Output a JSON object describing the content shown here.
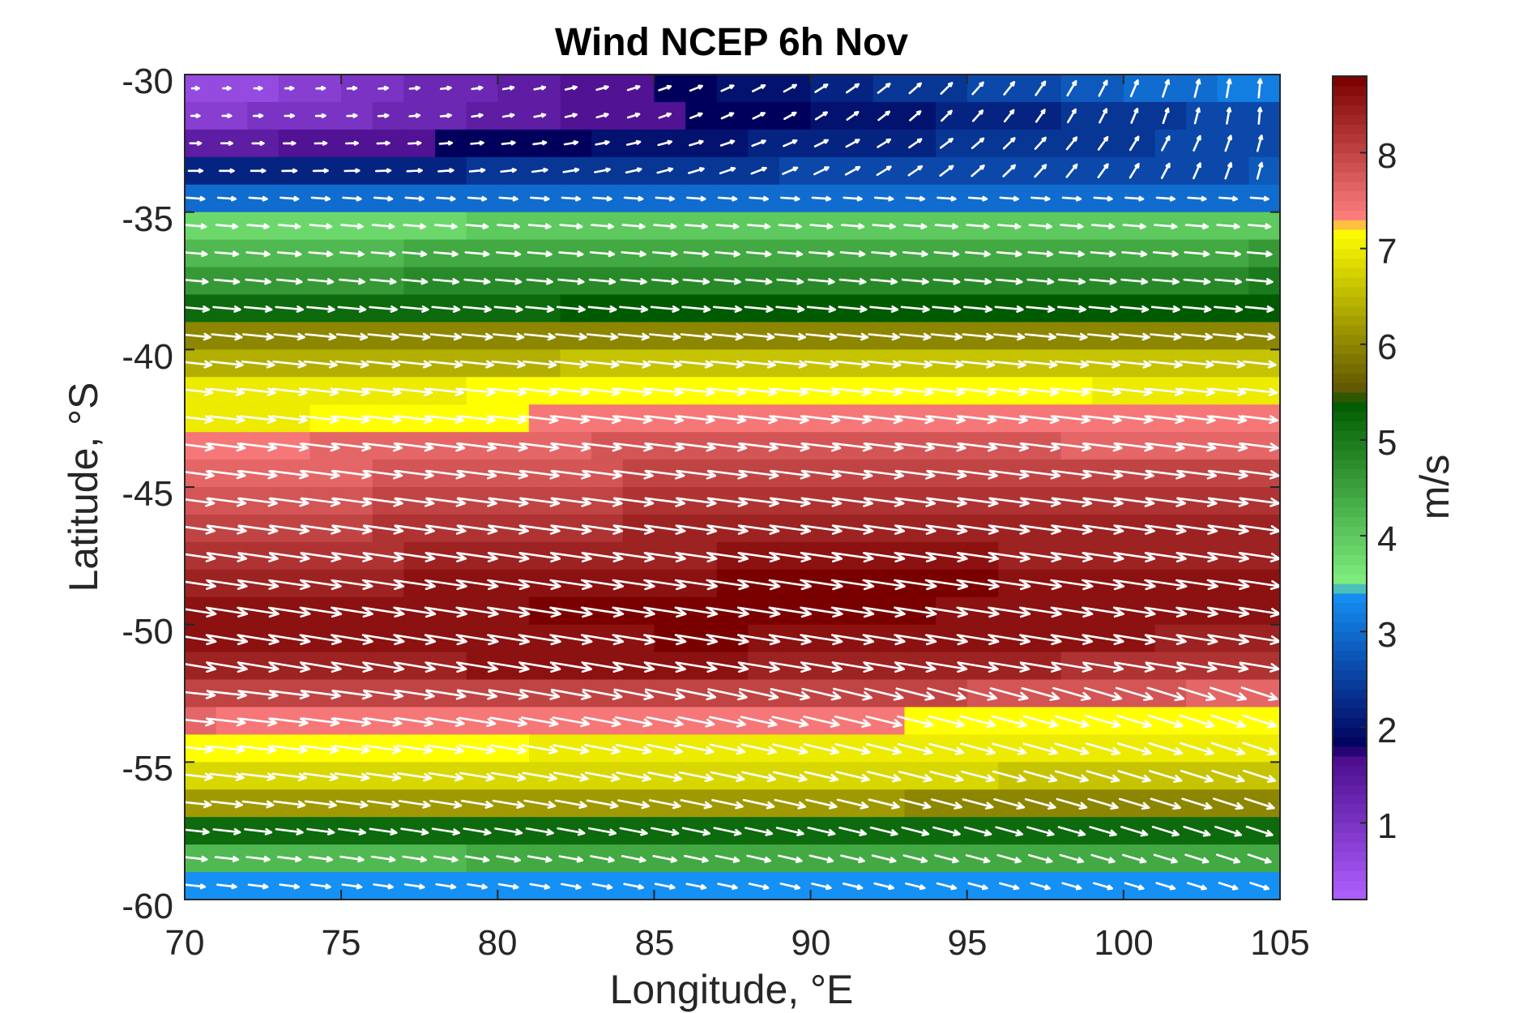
{
  "chart_data": {
    "type": "heatmap",
    "title": "Wind NCEP 6h Nov",
    "xlabel": "Longitude, °E",
    "ylabel": "Latitude, °S",
    "colorbar_label": "m/s",
    "xlim": [
      70,
      105
    ],
    "ylim": [
      -60,
      -30
    ],
    "xticks": [
      "70",
      "75",
      "80",
      "85",
      "90",
      "95",
      "100",
      "105"
    ],
    "yticks": [
      "-30",
      "-35",
      "-40",
      "-45",
      "-50",
      "-55",
      "-60"
    ],
    "colorbar_range": [
      0.2,
      8.8
    ],
    "colorbar_ticks": [
      "1",
      "2",
      "3",
      "4",
      "5",
      "6",
      "7",
      "8"
    ],
    "grid": false,
    "vectors": "white wind arrows overlaid on each grid cell",
    "colormap": [
      {
        "value": 0.2,
        "color": "#b060ff"
      },
      {
        "value": 1.7,
        "color": "#4a0c8c"
      },
      {
        "value": 1.8,
        "color": "#00005c"
      },
      {
        "value": 3.4,
        "color": "#1590f5"
      },
      {
        "value": 3.5,
        "color": "#80f080"
      },
      {
        "value": 5.4,
        "color": "#005a00"
      },
      {
        "value": 5.5,
        "color": "#5e5400"
      },
      {
        "value": 7.2,
        "color": "#ffff00"
      },
      {
        "value": 7.3,
        "color": "#ff8080"
      },
      {
        "value": 8.8,
        "color": "#7a0000"
      }
    ],
    "lat_rows": [
      -30.5,
      -31.5,
      -32.5,
      -33.5,
      -34.5,
      -35.5,
      -36.5,
      -37.5,
      -38.5,
      -39.5,
      -40.5,
      -41.5,
      -42.5,
      -43.5,
      -44.5,
      -45.5,
      -46.5,
      -47.5,
      -48.5,
      -49.5,
      -50.5,
      -51.5,
      -52.5,
      -53.5,
      -54.5,
      -55.5,
      -56.5,
      -57.5,
      -58.5,
      -59.5
    ],
    "row_speed_west": [
      0.5,
      0.8,
      1.4,
      2.1,
      3.0,
      3.8,
      4.2,
      4.6,
      5.2,
      5.9,
      6.4,
      6.9,
      7.0,
      7.4,
      7.5,
      7.7,
      7.9,
      8.1,
      8.3,
      8.5,
      8.5,
      8.4,
      8.0,
      7.5,
      7.1,
      6.8,
      6.1,
      5.1,
      4.2,
      3.3
    ],
    "row_speed_east": [
      3.2,
      2.6,
      2.6,
      2.7,
      3.0,
      4.0,
      4.5,
      4.9,
      5.3,
      5.9,
      6.5,
      7.0,
      7.3,
      7.6,
      7.9,
      8.1,
      8.3,
      8.4,
      8.6,
      8.5,
      8.4,
      8.1,
      7.6,
      7.1,
      6.9,
      6.6,
      6.0,
      5.2,
      4.4,
      3.3
    ]
  }
}
